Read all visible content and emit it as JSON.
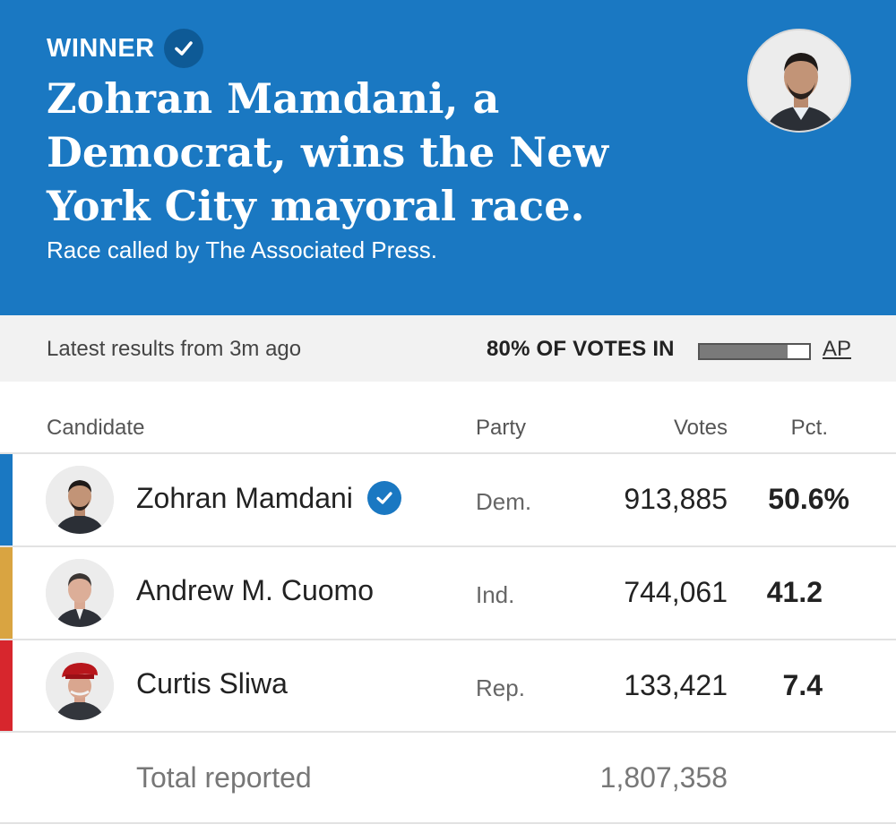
{
  "header": {
    "winner_label": "WINNER",
    "headline": "Zohran Mamdani, a Democrat, wins the New York City mayoral race.",
    "subline": "Race called by The Associated Press.",
    "background_color": "#1a78c2"
  },
  "status": {
    "latest": "Latest results from 3m ago",
    "votes_in": "80% OF VOTES IN",
    "votes_in_fraction": 0.8,
    "source_link": "AP"
  },
  "columns": {
    "candidate": "Candidate",
    "party": "Party",
    "votes": "Votes",
    "pct": "Pct."
  },
  "candidates": [
    {
      "name": "Zohran Mamdani",
      "party": "Dem.",
      "votes": "913,885",
      "pct": "50.6%",
      "winner": true,
      "color": "#1a78c2"
    },
    {
      "name": "Andrew M. Cuomo",
      "party": "Ind.",
      "votes": "744,061",
      "pct": "41.2",
      "winner": false,
      "color": "#d9a441"
    },
    {
      "name": "Curtis Sliwa",
      "party": "Rep.",
      "votes": "133,421",
      "pct": "7.4",
      "winner": false,
      "color": "#d7262d"
    }
  ],
  "total": {
    "label": "Total reported",
    "votes": "1,807,358"
  }
}
